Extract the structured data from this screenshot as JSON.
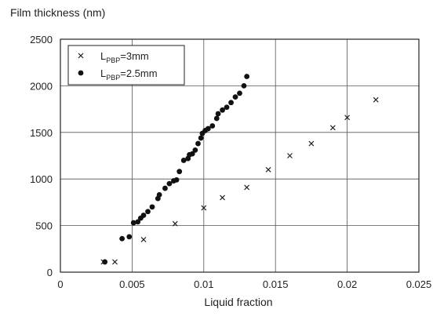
{
  "chart_data": {
    "type": "scatter",
    "title": "",
    "ylabel": "Film thickness (nm)",
    "xlabel": "Liquid fraction",
    "xlim": [
      0,
      0.025
    ],
    "ylim": [
      0,
      2500
    ],
    "xticks": [
      0,
      0.005,
      0.01,
      0.015,
      0.02,
      0.025
    ],
    "xtick_labels": [
      "0",
      "0.005",
      "0.01",
      "0.015",
      "0.02",
      "0.025"
    ],
    "yticks": [
      0,
      500,
      1000,
      1500,
      2000,
      2500
    ],
    "ytick_labels": [
      "0",
      "500",
      "1000",
      "1500",
      "2000",
      "2500"
    ],
    "grid": true,
    "legend_position": "top-left",
    "series": [
      {
        "name": "L_PBP=3mm",
        "legend_main": "L",
        "legend_sub": "PBP",
        "legend_rest": "=3mm",
        "marker": "x",
        "x": [
          0.003,
          0.0038,
          0.0058,
          0.008,
          0.01,
          0.0113,
          0.013,
          0.0145,
          0.016,
          0.0175,
          0.019,
          0.02,
          0.022
        ],
        "y": [
          110,
          110,
          350,
          520,
          690,
          800,
          910,
          1100,
          1250,
          1380,
          1550,
          1660,
          1850
        ]
      },
      {
        "name": "L_PBP=2.5mm",
        "legend_main": "L",
        "legend_sub": "PBP",
        "legend_rest": "=2.5mm",
        "marker": "dot",
        "x": [
          0.0031,
          0.0043,
          0.0048,
          0.0051,
          0.0054,
          0.0056,
          0.0058,
          0.0061,
          0.0064,
          0.0068,
          0.0069,
          0.0073,
          0.0076,
          0.0079,
          0.0081,
          0.0083,
          0.0086,
          0.0089,
          0.009,
          0.0092,
          0.0094,
          0.0096,
          0.0098,
          0.0099,
          0.0101,
          0.0103,
          0.0106,
          0.0109,
          0.011,
          0.0113,
          0.0116,
          0.0119,
          0.0122,
          0.0125,
          0.0128,
          0.013
        ],
        "y": [
          110,
          360,
          380,
          530,
          540,
          580,
          610,
          650,
          700,
          790,
          830,
          900,
          950,
          980,
          990,
          1080,
          1200,
          1220,
          1260,
          1270,
          1310,
          1380,
          1440,
          1490,
          1520,
          1540,
          1570,
          1650,
          1700,
          1740,
          1770,
          1820,
          1880,
          1920,
          2000,
          2100
        ]
      }
    ]
  }
}
